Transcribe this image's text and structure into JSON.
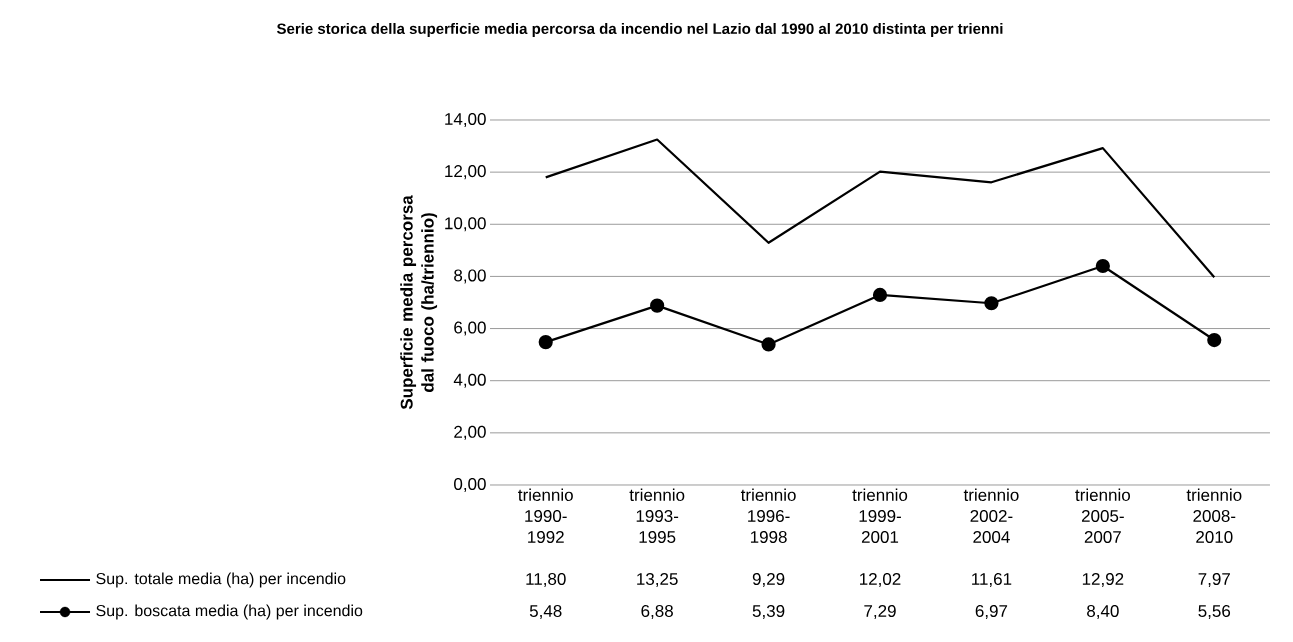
{
  "chart_data": {
    "type": "line",
    "title": "Serie storica della superficie media percorsa da incendio nel Lazio dal 1990 al 2010 distinta per trienni",
    "ylabel": "Superficie media percorsa dal fuoco (ha/triennio)",
    "categories": [
      "triennio 1990-1992",
      "triennio 1993-1995",
      "triennio 1996-1998",
      "triennio 1999-2001",
      "triennio 2002-2004",
      "triennio 2005-2007",
      "triennio 2008-2010"
    ],
    "series": [
      {
        "name": "Sup. totale media (ha) per incendio",
        "color": "#000000",
        "marker": "none",
        "values": [
          11.8,
          13.25,
          9.29,
          12.02,
          11.61,
          12.92,
          7.97
        ],
        "value_labels": [
          "11,80",
          "13,25",
          "9,29",
          "12,02",
          "11,61",
          "12,92",
          "7,97"
        ]
      },
      {
        "name": "Sup. boscata media (ha) per incendio",
        "color": "#000000",
        "marker": "circle",
        "values": [
          5.48,
          6.88,
          5.39,
          7.29,
          6.97,
          8.4,
          5.56
        ],
        "value_labels": [
          "5,48",
          "6,88",
          "5,39",
          "7,29",
          "6,97",
          "8,40",
          "5,56"
        ]
      }
    ],
    "ylim": [
      0,
      14
    ],
    "yticks": [
      {
        "value": 0,
        "label": "0,00"
      },
      {
        "value": 2,
        "label": "2,00"
      },
      {
        "value": 4,
        "label": "4,00"
      },
      {
        "value": 6,
        "label": "6,00"
      },
      {
        "value": 8,
        "label": "8,00"
      },
      {
        "value": 10,
        "label": "10,00"
      },
      {
        "value": 12,
        "label": "12,00"
      },
      {
        "value": 14,
        "label": "14,00"
      }
    ],
    "grid": "y",
    "legend": "bottom",
    "line_style": "solid"
  }
}
